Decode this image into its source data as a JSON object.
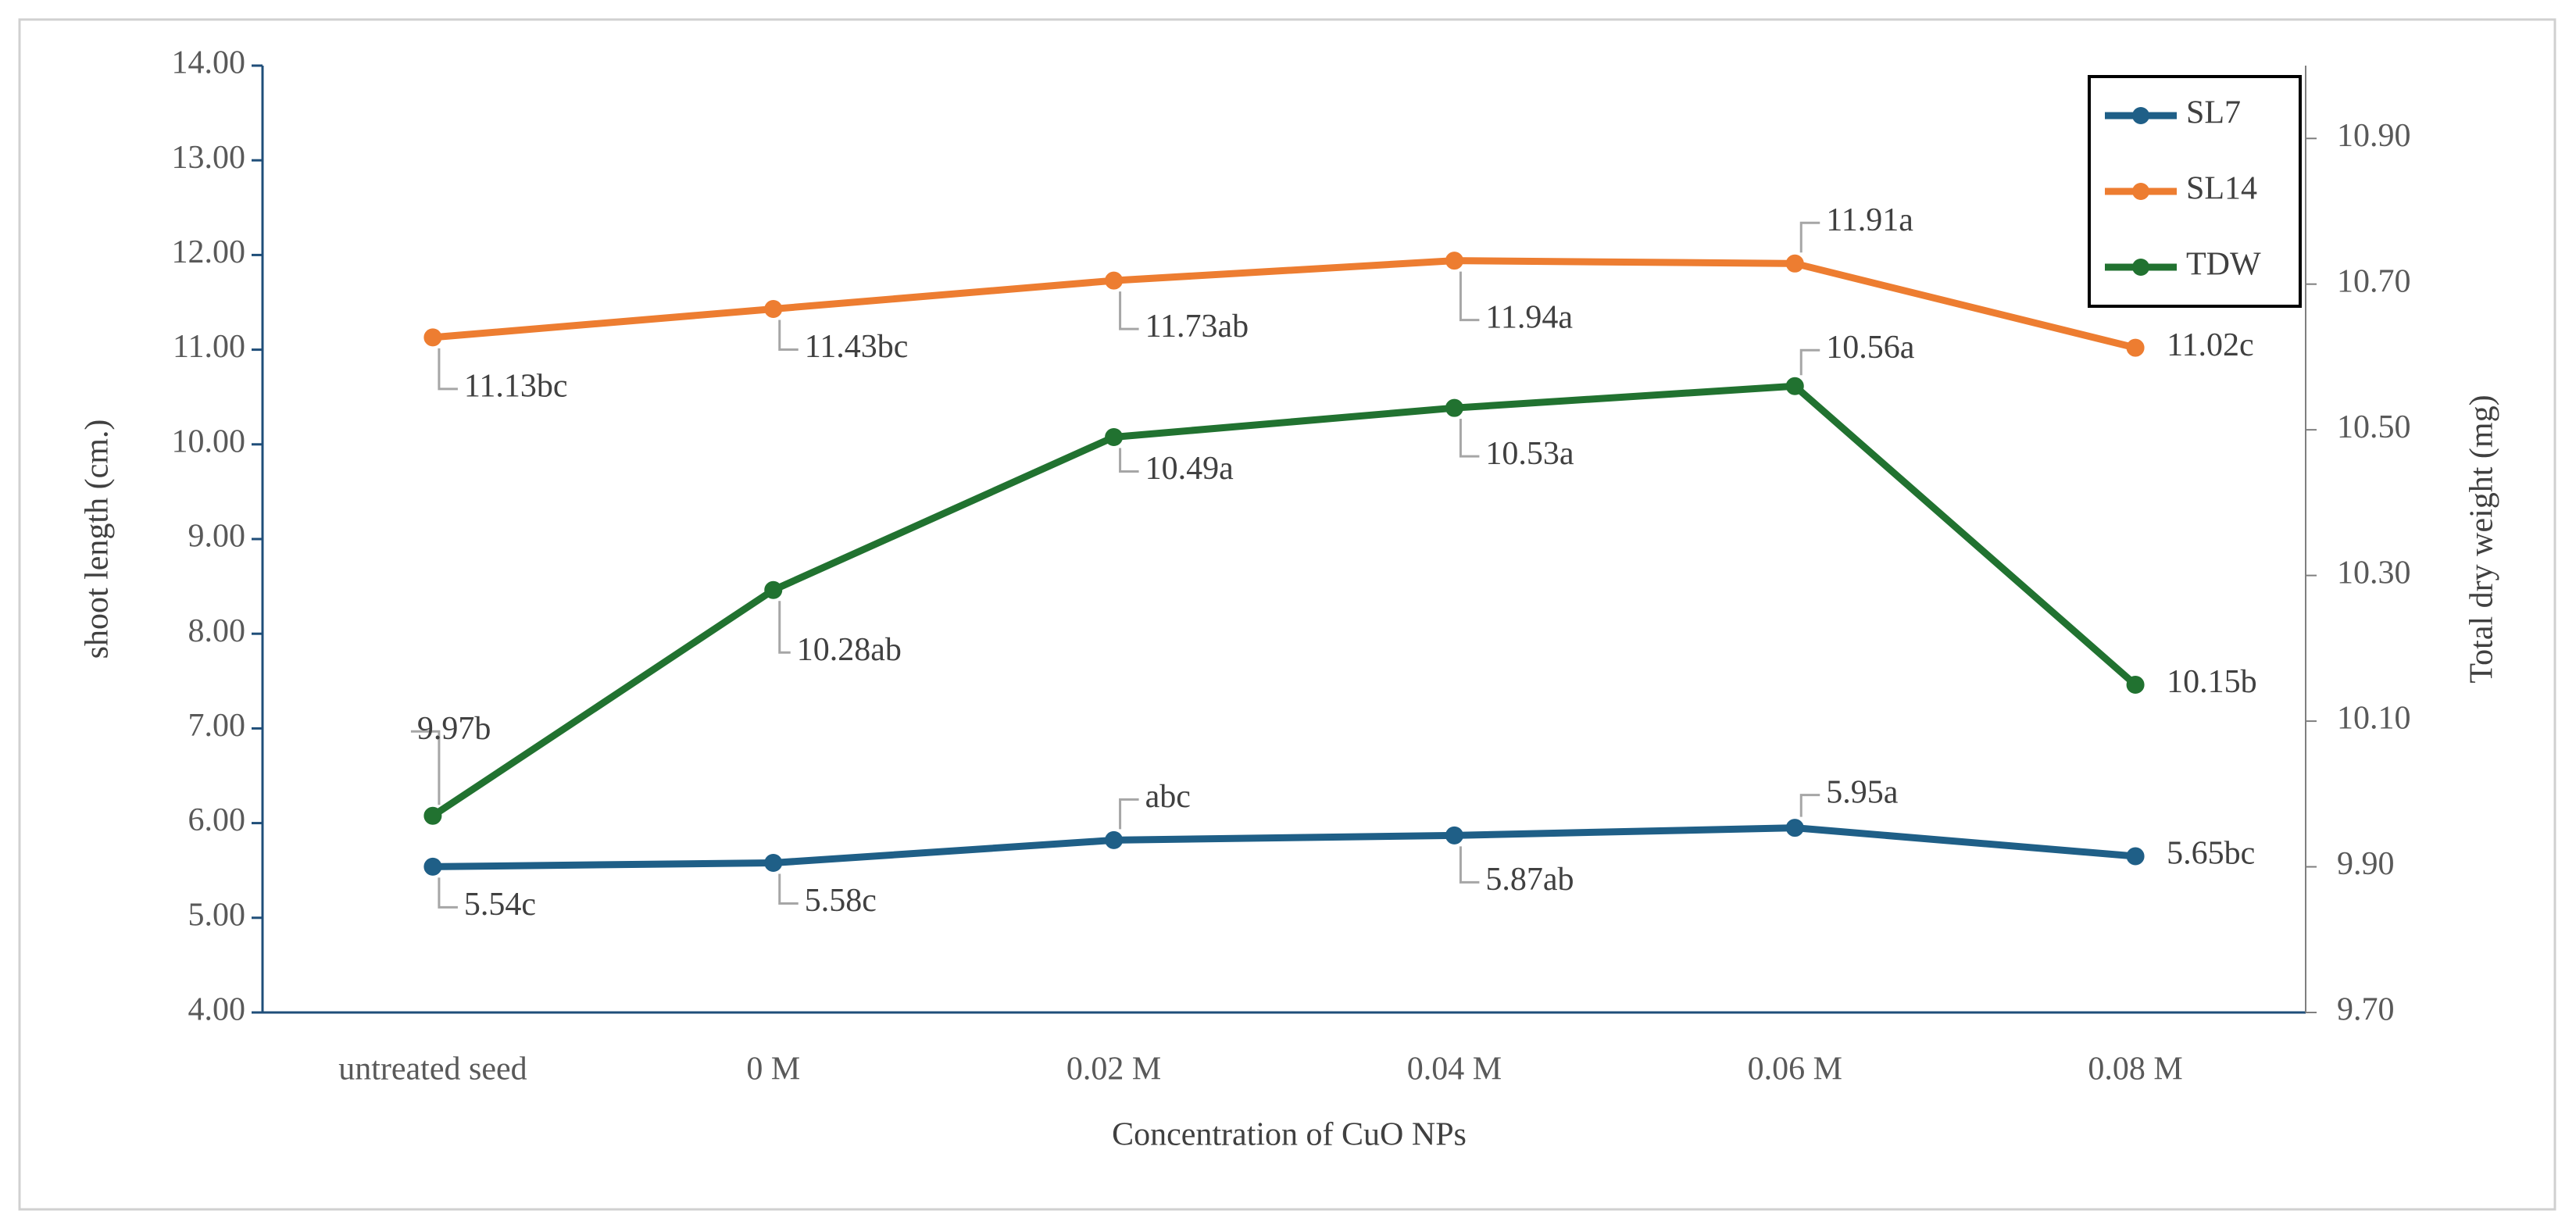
{
  "chart_data": {
    "type": "line",
    "xlabel": "Concentration of CuO NPs",
    "ylabel": "shoot length (cm.)",
    "y2label": "Total dry weight (mg)",
    "categories": [
      "untreated seed",
      "0 M",
      "0.02 M",
      "0.04 M",
      "0.06 M",
      "0.08 M"
    ],
    "series": [
      {
        "name": "SL7",
        "color": "#1f5f87",
        "values": [
          5.54,
          5.58,
          5.82,
          5.87,
          5.95,
          5.65
        ],
        "value_labels": [
          "5.54c",
          "5.58c",
          "abc",
          "5.87ab",
          "5.95a",
          "5.65bc"
        ]
      },
      {
        "name": "SL14",
        "color": "#ed7d31",
        "values": [
          11.13,
          11.43,
          11.73,
          11.94,
          11.91,
          11.02
        ],
        "value_labels": [
          "11.13bc",
          "11.43bc",
          "11.73ab",
          "11.94a",
          "11.91a",
          "11.02c"
        ]
      },
      {
        "name": "TDW",
        "color": "#217230",
        "axis": "y2",
        "values": [
          9.97,
          10.28,
          10.49,
          10.53,
          10.56,
          10.15
        ],
        "value_labels": [
          "9.97b",
          "10.28ab",
          "10.49a",
          "10.53a",
          "10.56a",
          "10.15b"
        ]
      }
    ],
    "ylim": [
      4,
      14
    ],
    "yticks": [
      {
        "value": 4,
        "label": "4.00"
      },
      {
        "value": 5,
        "label": "5.00"
      },
      {
        "value": 6,
        "label": "6.00"
      },
      {
        "value": 7,
        "label": "7.00"
      },
      {
        "value": 8,
        "label": "8.00"
      },
      {
        "value": 9,
        "label": "9.00"
      },
      {
        "value": 10,
        "label": "10.00"
      },
      {
        "value": 11,
        "label": "11.00"
      },
      {
        "value": 12,
        "label": "12.00"
      },
      {
        "value": 13,
        "label": "13.00"
      },
      {
        "value": 14,
        "label": "14.00"
      }
    ],
    "y2lim": [
      9.7,
      11.0
    ],
    "y2ticks": [
      {
        "value": 9.7,
        "label": "9.70"
      },
      {
        "value": 9.9,
        "label": "9.90"
      },
      {
        "value": 10.1,
        "label": "10.10"
      },
      {
        "value": 10.3,
        "label": "10.30"
      },
      {
        "value": 10.5,
        "label": "10.50"
      },
      {
        "value": 10.7,
        "label": "10.70"
      },
      {
        "value": 10.9,
        "label": "10.90"
      }
    ],
    "legend": "upper right"
  }
}
